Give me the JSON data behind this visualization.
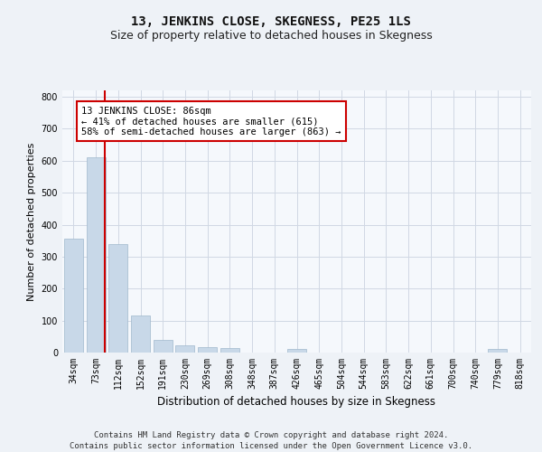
{
  "title": "13, JENKINS CLOSE, SKEGNESS, PE25 1LS",
  "subtitle": "Size of property relative to detached houses in Skegness",
  "xlabel": "Distribution of detached houses by size in Skegness",
  "ylabel": "Number of detached properties",
  "categories": [
    "34sqm",
    "73sqm",
    "112sqm",
    "152sqm",
    "191sqm",
    "230sqm",
    "269sqm",
    "308sqm",
    "348sqm",
    "387sqm",
    "426sqm",
    "465sqm",
    "504sqm",
    "544sqm",
    "583sqm",
    "622sqm",
    "661sqm",
    "700sqm",
    "740sqm",
    "779sqm",
    "818sqm"
  ],
  "values": [
    357,
    610,
    340,
    115,
    40,
    23,
    18,
    14,
    0,
    0,
    10,
    0,
    0,
    0,
    0,
    0,
    0,
    0,
    0,
    10,
    0
  ],
  "bar_color": "#c8d8e8",
  "bar_edge_color": "#a0b8cc",
  "vline_color": "#cc0000",
  "annotation_text": "13 JENKINS CLOSE: 86sqm\n← 41% of detached houses are smaller (615)\n58% of semi-detached houses are larger (863) →",
  "annotation_box_color": "white",
  "annotation_box_edge": "#cc0000",
  "ylim": [
    0,
    820
  ],
  "yticks": [
    0,
    100,
    200,
    300,
    400,
    500,
    600,
    700,
    800
  ],
  "footer_text": "Contains HM Land Registry data © Crown copyright and database right 2024.\nContains public sector information licensed under the Open Government Licence v3.0.",
  "bg_color": "#eef2f7",
  "plot_bg_color": "#f5f8fc",
  "grid_color": "#d0d8e4",
  "title_fontsize": 10,
  "subtitle_fontsize": 9,
  "xlabel_fontsize": 8.5,
  "ylabel_fontsize": 8,
  "tick_fontsize": 7,
  "footer_fontsize": 6.5,
  "annot_fontsize": 7.5
}
